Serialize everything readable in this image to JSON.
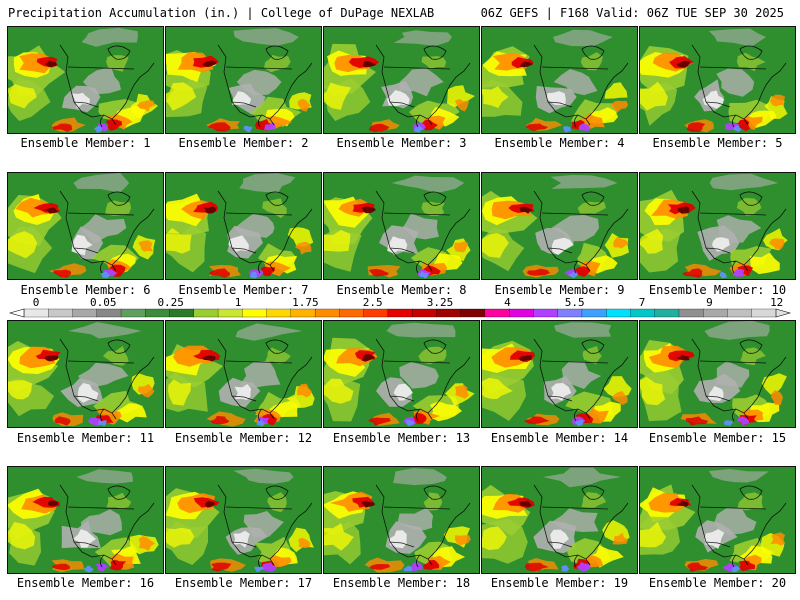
{
  "header": {
    "title": "Precipitation Accumulation (in.) | College of DuPage NEXLAB",
    "run_info": "06Z GEFS | F168 Valid: 06Z TUE SEP 30 2025"
  },
  "caption_prefix": "Ensemble Member:",
  "members": [
    1,
    2,
    3,
    4,
    5,
    6,
    7,
    8,
    9,
    10,
    11,
    12,
    13,
    14,
    15,
    16,
    17,
    18,
    19,
    20
  ],
  "colorbar": {
    "labels": [
      "0",
      "0.05",
      "0.25",
      "1",
      "1.75",
      "2.5",
      "3.25",
      "4",
      "5.5",
      "7",
      "9",
      "12"
    ],
    "colors": [
      "#e8e8e8",
      "#c8c8c8",
      "#a8a8a8",
      "#888888",
      "#5fa05f",
      "#3c8c3c",
      "#2a7a2a",
      "#9acd32",
      "#c8e632",
      "#ffff00",
      "#ffd700",
      "#ffb300",
      "#ff8c00",
      "#ff6a00",
      "#ff3c00",
      "#e60000",
      "#c80000",
      "#a00000",
      "#800000",
      "#ff00a0",
      "#e000e0",
      "#b040ff",
      "#8080ff",
      "#40a0ff",
      "#00e0ff",
      "#00c8c8",
      "#20b0a0",
      "#909090",
      "#a8a8a8",
      "#c0c0c0",
      "#d8d8d8"
    ]
  },
  "map_palette": {
    "base": "#2f8f2f",
    "light": "#9acd32",
    "yellow": "#ffff00",
    "orange": "#ff8c00",
    "red": "#e00000",
    "dark": "#600000",
    "gray": "#b0b0b0",
    "white": "#f0f0f0",
    "purple": "#b040ff",
    "blue": "#6090ff",
    "border": "#000000"
  }
}
